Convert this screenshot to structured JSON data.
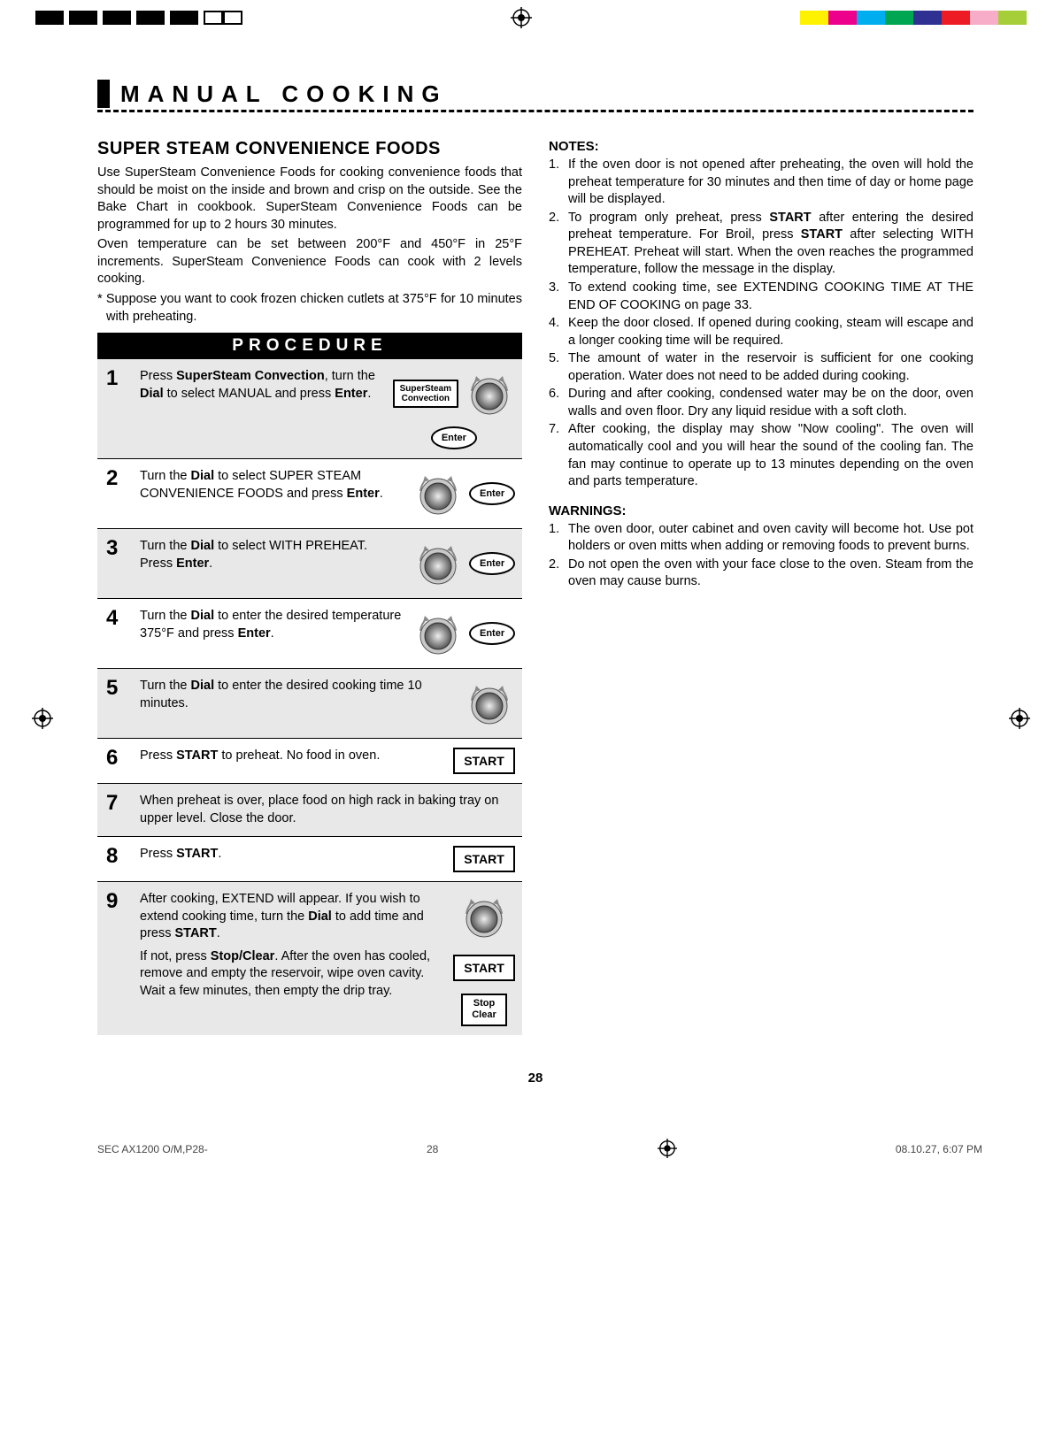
{
  "printer_bar": {
    "left_colors": [
      "#000000",
      "#000000",
      "#000000",
      "#000000",
      "#000000",
      "#000000",
      "#000000"
    ],
    "right_colors": [
      "#fff200",
      "#ec008c",
      "#00aeef",
      "#00a651",
      "#2e3192",
      "#ed1c24",
      "#f7adc8",
      "#a6ce39"
    ]
  },
  "section": {
    "title": "MANUAL  COOKING"
  },
  "subsection": {
    "title": "SUPER STEAM CONVENIENCE FOODS",
    "intro_1": "Use SuperSteam Convenience Foods for cooking convenience foods that should be moist on the inside and brown and crisp on the outside. See the Bake Chart in cookbook. SuperSteam Convenience Foods can be programmed for up to 2 hours 30 minutes.",
    "intro_2": "Oven temperature can be set between 200°F and 450°F in 25°F increments. SuperSteam Convenience Foods can cook with 2 levels cooking.",
    "supposition": "* Suppose you want to cook frozen chicken cutlets at 375°F for 10 minutes with preheating."
  },
  "procedure": {
    "header": "PROCEDURE",
    "steps": [
      {
        "n": "1",
        "html": "Press <b>SuperSteam Convection</b>, turn the <b>Dial</b> to select MANUAL and press <b>Enter</b>."
      },
      {
        "n": "2",
        "html": "Turn the <b>Dial</b> to select SUPER STEAM CONVENIENCE FOODS and press <b>Enter</b>."
      },
      {
        "n": "3",
        "html": "Turn the <b>Dial</b> to select WITH PREHEAT. Press <b>Enter</b>."
      },
      {
        "n": "4",
        "html": "Turn the <b>Dial</b> to enter the desired temperature 375°F and press <b>Enter</b>."
      },
      {
        "n": "5",
        "html": "Turn the <b>Dial</b> to enter the desired cooking time 10 minutes."
      },
      {
        "n": "6",
        "html": "Press <b>START</b> to preheat. No food in oven."
      },
      {
        "n": "7",
        "html": "When preheat is over, place food on high rack in baking tray on upper level. Close the door."
      },
      {
        "n": "8",
        "html": "Press <b>START</b>."
      },
      {
        "n": "9",
        "html": "After cooking, EXTEND will appear. If you wish to extend cooking time, turn the <b>Dial</b> to add time and press <b>START</b>.",
        "html2": "If not, press <b>Stop/Clear</b>. After the oven has cooled, remove and empty the reservoir, wipe oven cavity. Wait a few minutes, then empty the drip tray."
      }
    ],
    "buttons": {
      "supersteam": "SuperSteam\nConvection",
      "enter": "Enter",
      "start": "START",
      "stop_clear": "Stop\nClear"
    }
  },
  "notes": {
    "title": "NOTES:",
    "items": [
      "If the oven door is not opened after preheating, the oven will hold the preheat temperature for 30 minutes and then time of day or home page will be displayed.",
      "To program only preheat, press <b>START</b> after entering the desired preheat temperature. For Broil, press <b>START</b> after selecting WITH PREHEAT. Preheat will start. When the oven reaches the programmed temperature, follow the message in the display.",
      "To extend cooking time, see EXTENDING COOKING TIME AT THE END OF COOKING on page 33.",
      "Keep the door closed. If opened during cooking, steam will escape and a longer cooking time will be required.",
      "The amount of water in the reservoir is sufficient for one cooking operation. Water does not need to be added during cooking.",
      "During and after cooking, condensed water may be on the door, oven walls and oven floor. Dry any liquid residue with a soft cloth.",
      "After cooking, the display may show \"Now cooling\". The oven will automatically cool and you will hear the sound of the cooling fan. The fan may continue to operate up to 13 minutes depending on the oven and parts temperature."
    ]
  },
  "warnings": {
    "title": "WARNINGS:",
    "items": [
      "The oven door, outer cabinet and oven cavity will become hot. Use pot holders or oven mitts when adding or removing foods to prevent burns.",
      "Do not open the oven with your face close to the oven.  Steam from the oven may cause burns."
    ]
  },
  "page_number": "28",
  "footer": {
    "doc_id": "SEC AX1200 O/M,P28-",
    "page": "28",
    "timestamp": "08.10.27, 6:07 PM"
  }
}
